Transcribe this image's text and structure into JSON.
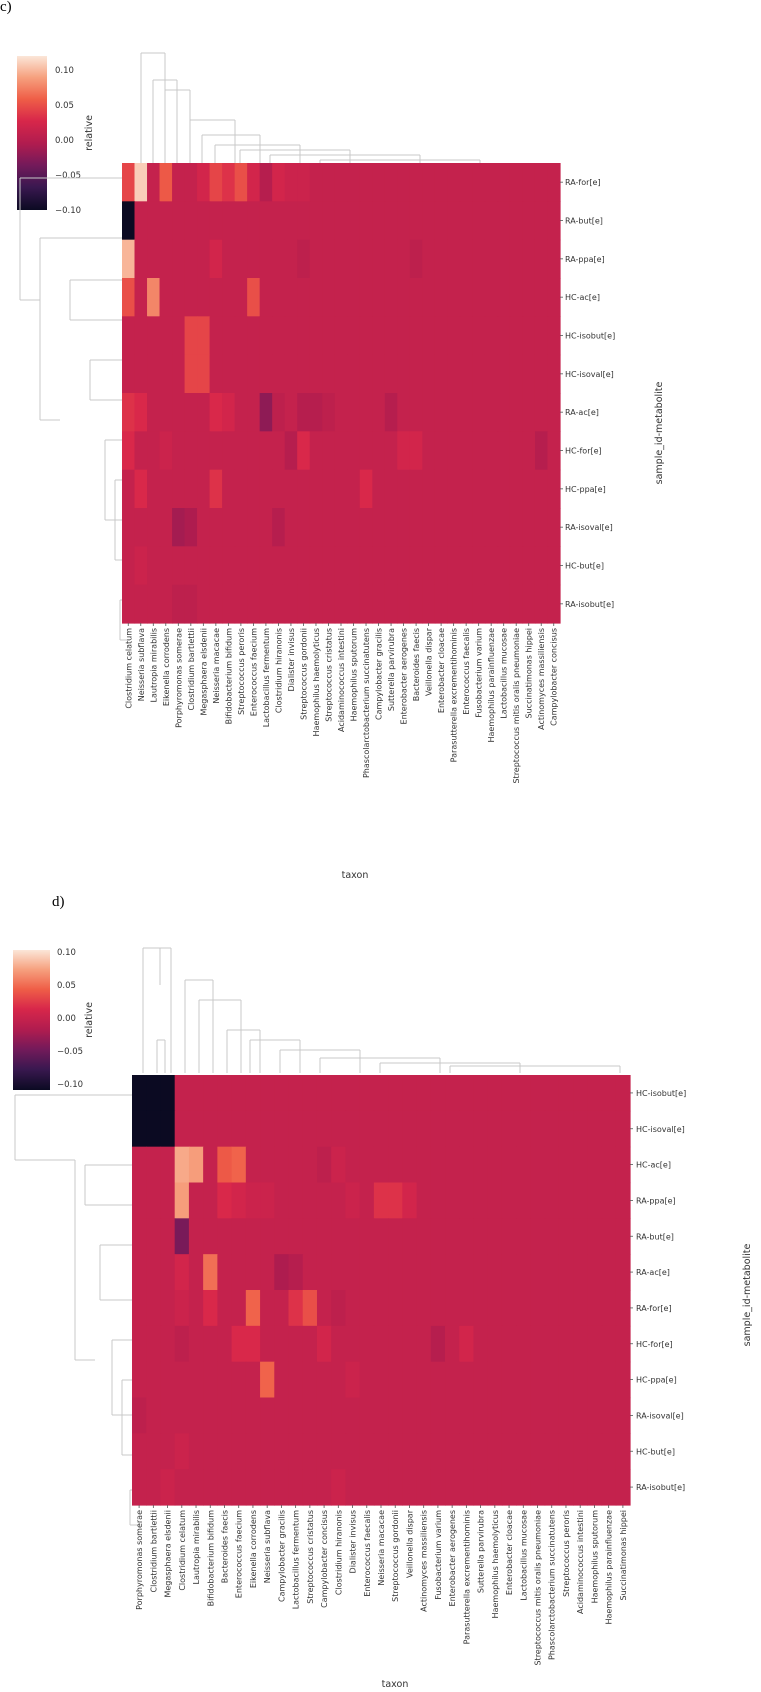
{
  "colors": {
    "scale_stops": [
      "#0b0a22",
      "#3a1850",
      "#731a5a",
      "#b01c4f",
      "#d8274a",
      "#ef5e47",
      "#f6a07e",
      "#fbe6d8"
    ],
    "background": "#ffffff",
    "dendrogram": "#c9c9c9"
  },
  "chart_data": [
    {
      "panel_label": "c)",
      "type": "heatmap",
      "xlabel": "taxon",
      "ylabel": "sample_id-metabolite",
      "colorbar_label": "relative",
      "colorbar_ticks": [
        "0.10",
        "0.05",
        "0.00",
        "−0.05",
        "−0.10"
      ],
      "vmin": -0.1,
      "vmax": 0.1,
      "rows": [
        "RA-for[e]",
        "RA-but[e]",
        "RA-ppa[e]",
        "HC-ac[e]",
        "HC-isobut[e]",
        "HC-isoval[e]",
        "RA-ac[e]",
        "HC-for[e]",
        "HC-ppa[e]",
        "RA-isoval[e]",
        "HC-but[e]",
        "RA-isobut[e]"
      ],
      "columns": [
        "Clostridium celatum",
        "Neisseria subflava",
        "Lautropia mirabilis",
        "Eikenella corrodens",
        "Porphyromonas somerae",
        "Clostridium bartlettii",
        "Megasphaera elsdenii",
        "Neisseria macacae",
        "Bifidobacterium bifidum",
        "Streptococcus peroris",
        "Enterococcus faecium",
        "Lactobacillus fermentum",
        "Clostridium hiranonis",
        "Dialister invisus",
        "Streptococcus gordonii",
        "Haemophilus haemolyticus",
        "Streptococcus cristatus",
        "Acidaminococcus intestini",
        "Haemophilus sputorum",
        "Phascolarctobacterium succinatutens",
        "Campylobacter gracilis",
        "Sutterella parvirubra",
        "Enterobacter aerogenes",
        "Bacteroides faecis",
        "Veillonella dispar",
        "Enterobacter cloacae",
        "Parasutterella excrementihominis",
        "Enterococcus faecalis",
        "Fusobacterium varium",
        "Haemophilus parainfluenzae",
        "Lactobacillus mucosae",
        "Streptococcus mitis oralis pneumoniae",
        "Succinatimonas hippei",
        "Actinomyces massiliensis",
        "Campylobacter concisus"
      ],
      "values": [
        [
          0.03,
          0.09,
          0.0,
          0.04,
          0.0,
          0.0,
          0.01,
          0.03,
          0.02,
          0.035,
          0.01,
          -0.01,
          0.01,
          0.005,
          0.005,
          0.0,
          0.0,
          0.0,
          0.0,
          0.0,
          0.0,
          0.0,
          0.0,
          0.0,
          0.0,
          0.0,
          0.0,
          0.0,
          0.0,
          0.0,
          0.0,
          0.0,
          0.0,
          0.0,
          0.0
        ],
        [
          -0.1,
          0.0,
          0.0,
          0.0,
          0.0,
          0.0,
          0.0,
          0.0,
          0.0,
          0.0,
          0.0,
          0.0,
          0.0,
          0.0,
          0.0,
          0.0,
          0.0,
          0.0,
          0.0,
          0.0,
          0.0,
          0.0,
          0.0,
          0.0,
          0.0,
          0.0,
          0.0,
          0.0,
          0.0,
          0.0,
          0.0,
          0.0,
          0.0,
          0.0,
          0.0
        ],
        [
          0.08,
          0.0,
          0.0,
          0.0,
          0.0,
          0.0,
          0.0,
          0.01,
          0.0,
          0.0,
          0.0,
          0.0,
          0.0,
          0.0,
          -0.005,
          0.0,
          0.0,
          0.0,
          0.0,
          0.0,
          0.0,
          0.0,
          0.0,
          -0.005,
          0.0,
          0.0,
          0.0,
          0.0,
          0.0,
          0.0,
          0.0,
          0.0,
          0.0,
          0.0,
          0.0
        ],
        [
          0.035,
          0.0,
          0.06,
          0.0,
          0.0,
          0.0,
          0.0,
          0.0,
          0.0,
          0.0,
          0.035,
          0.0,
          0.0,
          0.0,
          0.0,
          0.0,
          0.0,
          0.0,
          0.0,
          0.0,
          0.0,
          0.0,
          0.0,
          0.0,
          0.0,
          0.0,
          0.0,
          0.0,
          0.0,
          0.0,
          0.0,
          0.0,
          0.0,
          0.0,
          0.0
        ],
        [
          0.0,
          0.0,
          0.0,
          0.0,
          0.0,
          0.03,
          0.03,
          0.0,
          0.0,
          0.0,
          0.0,
          0.0,
          0.0,
          0.0,
          0.0,
          0.0,
          0.0,
          0.0,
          0.0,
          0.0,
          0.0,
          0.0,
          0.0,
          0.0,
          0.0,
          0.0,
          0.0,
          0.0,
          0.0,
          0.0,
          0.0,
          0.0,
          0.0,
          0.0,
          0.0
        ],
        [
          0.0,
          0.0,
          0.0,
          0.0,
          0.0,
          0.03,
          0.03,
          0.0,
          0.0,
          0.0,
          0.0,
          0.0,
          0.0,
          0.0,
          0.0,
          0.0,
          0.0,
          0.0,
          0.0,
          0.0,
          0.0,
          0.0,
          0.0,
          0.0,
          0.0,
          0.0,
          0.0,
          0.0,
          0.0,
          0.0,
          0.0,
          0.0,
          0.0,
          0.0,
          0.0
        ],
        [
          0.02,
          0.015,
          0.0,
          0.0,
          0.0,
          0.0,
          0.0,
          0.015,
          0.01,
          0.0,
          0.0,
          -0.03,
          -0.005,
          0.0,
          -0.01,
          -0.01,
          -0.005,
          0.0,
          0.0,
          0.0,
          0.0,
          -0.01,
          0.0,
          0.0,
          0.0,
          0.0,
          0.0,
          0.0,
          0.0,
          0.0,
          0.0,
          0.0,
          0.0,
          0.0,
          0.0
        ],
        [
          0.015,
          0.0,
          0.0,
          0.005,
          0.0,
          0.0,
          0.0,
          0.0,
          0.0,
          0.0,
          0.0,
          0.0,
          0.0,
          -0.01,
          0.015,
          0.0,
          0.0,
          0.0,
          0.0,
          0.0,
          0.0,
          0.0,
          0.01,
          0.01,
          0.0,
          0.0,
          0.0,
          0.0,
          0.0,
          0.0,
          0.0,
          0.0,
          0.0,
          -0.01,
          0.0
        ],
        [
          0.0,
          0.015,
          0.0,
          0.0,
          0.0,
          0.0,
          0.0,
          0.02,
          0.0,
          0.0,
          0.0,
          0.0,
          0.0,
          0.0,
          0.0,
          0.0,
          0.0,
          0.0,
          0.0,
          0.015,
          0.0,
          0.0,
          0.0,
          0.0,
          0.0,
          0.0,
          0.0,
          0.0,
          0.0,
          0.0,
          0.0,
          0.0,
          0.0,
          0.0,
          0.0
        ],
        [
          0.0,
          0.0,
          0.0,
          0.0,
          -0.02,
          -0.015,
          0.0,
          0.0,
          0.0,
          0.0,
          0.0,
          0.0,
          -0.01,
          0.0,
          0.0,
          0.0,
          0.0,
          0.0,
          0.0,
          0.0,
          0.0,
          0.0,
          0.0,
          0.0,
          0.0,
          0.0,
          0.0,
          0.0,
          0.0,
          0.0,
          0.0,
          0.0,
          0.0,
          0.0,
          0.0
        ],
        [
          0.0,
          0.005,
          0.0,
          0.0,
          0.0,
          0.0,
          0.0,
          0.0,
          0.0,
          0.0,
          0.0,
          0.0,
          0.0,
          0.0,
          0.0,
          0.0,
          0.0,
          0.0,
          0.0,
          0.0,
          0.0,
          0.0,
          0.0,
          0.0,
          0.0,
          0.0,
          0.0,
          0.0,
          0.0,
          0.0,
          0.0,
          0.0,
          0.0,
          0.0,
          0.0
        ],
        [
          0.0,
          0.0,
          0.0,
          0.0,
          -0.005,
          -0.005,
          0.0,
          0.0,
          0.0,
          0.0,
          0.0,
          0.0,
          0.0,
          0.0,
          0.0,
          0.0,
          0.0,
          0.0,
          0.0,
          0.0,
          0.0,
          0.0,
          0.0,
          0.0,
          0.0,
          0.0,
          0.0,
          0.0,
          0.0,
          0.0,
          0.0,
          0.0,
          0.0,
          0.0,
          0.0
        ]
      ]
    },
    {
      "panel_label": "d)",
      "type": "heatmap",
      "xlabel": "taxon",
      "ylabel": "sample_id-metabolite",
      "colorbar_label": "relative",
      "colorbar_ticks": [
        "0.10",
        "0.05",
        "0.00",
        "−0.05",
        "−0.10"
      ],
      "vmin": -0.1,
      "vmax": 0.1,
      "rows": [
        "HC-isobut[e]",
        "HC-isoval[e]",
        "HC-ac[e]",
        "RA-ppa[e]",
        "RA-but[e]",
        "RA-ac[e]",
        "RA-for[e]",
        "HC-for[e]",
        "HC-ppa[e]",
        "RA-isoval[e]",
        "HC-but[e]",
        "RA-isobut[e]"
      ],
      "columns": [
        "Porphyromonas somerae",
        "Clostridium bartlettii",
        "Megasphaera elsdenii",
        "Clostridium celatum",
        "Lautropia mirabilis",
        "Bifidobacterium bifidum",
        "Bacteroides faecis",
        "Enterococcus faecium",
        "Eikenella corrodens",
        "Neisseria subflava",
        "Campylobacter gracilis",
        "Lactobacillus fermentum",
        "Streptococcus cristatus",
        "Campylobacter concisus",
        "Clostridium hiranonis",
        "Dialister invisus",
        "Enterococcus faecalis",
        "Neisseria macacae",
        "Streptococcus gordonii",
        "Veillonella dispar",
        "Actinomyces massiliensis",
        "Fusobacterium varium",
        "Enterobacter aerogenes",
        "Parasutterella excrementihominis",
        "Sutterella parvirubra",
        "Haemophilus haemolyticus",
        "Enterobacter cloacae",
        "Lactobacillus mucosae",
        "Streptococcus mitis oralis pneumoniae",
        "Phascolarctobacterium succinatutens",
        "Streptococcus peroris",
        "Acidaminococcus intestini",
        "Haemophilus sputorum",
        "Haemophilus parainfluenzae",
        "Succinatimonas hippei"
      ],
      "values": [
        [
          -0.1,
          -0.1,
          -0.1,
          0.0,
          0.0,
          0.0,
          0.0,
          0.0,
          0.0,
          0.0,
          0.0,
          0.0,
          0.0,
          0.0,
          0.0,
          0.0,
          0.0,
          0.0,
          0.0,
          0.0,
          0.0,
          0.0,
          0.0,
          0.0,
          0.0,
          0.0,
          0.0,
          0.0,
          0.0,
          0.0,
          0.0,
          0.0,
          0.0,
          0.0,
          0.0
        ],
        [
          -0.1,
          -0.1,
          -0.1,
          0.0,
          0.0,
          0.0,
          0.0,
          0.0,
          0.0,
          0.0,
          0.0,
          0.0,
          0.0,
          0.0,
          0.0,
          0.0,
          0.0,
          0.0,
          0.0,
          0.0,
          0.0,
          0.0,
          0.0,
          0.0,
          0.0,
          0.0,
          0.0,
          0.0,
          0.0,
          0.0,
          0.0,
          0.0,
          0.0,
          0.0,
          0.0
        ],
        [
          0.0,
          0.0,
          0.0,
          0.075,
          0.07,
          0.0,
          0.04,
          0.045,
          0.0,
          0.0,
          0.0,
          0.0,
          0.0,
          -0.005,
          0.005,
          0.0,
          0.0,
          0.0,
          0.0,
          0.0,
          0.0,
          0.0,
          0.0,
          0.0,
          0.0,
          0.0,
          0.0,
          0.0,
          0.0,
          0.0,
          0.0,
          0.0,
          0.0,
          0.0,
          0.0
        ],
        [
          0.0,
          0.0,
          0.0,
          0.07,
          0.0,
          0.0,
          0.015,
          0.01,
          0.005,
          0.005,
          0.0,
          0.0,
          0.0,
          0.0,
          0.0,
          0.005,
          0.0,
          0.02,
          0.02,
          0.01,
          0.0,
          0.0,
          0.0,
          0.0,
          0.0,
          0.0,
          0.0,
          0.0,
          0.0,
          0.0,
          0.0,
          0.0,
          0.0,
          0.0,
          0.0
        ],
        [
          0.0,
          0.0,
          0.0,
          -0.04,
          0.0,
          0.0,
          0.0,
          0.0,
          0.0,
          0.0,
          0.0,
          0.0,
          0.0,
          0.0,
          0.0,
          0.0,
          0.0,
          0.0,
          0.0,
          0.0,
          0.0,
          0.0,
          0.0,
          0.0,
          0.0,
          0.0,
          0.0,
          0.0,
          0.0,
          0.0,
          0.0,
          0.0,
          0.0,
          0.0,
          0.0
        ],
        [
          0.0,
          0.0,
          0.0,
          0.01,
          0.0,
          0.05,
          0.0,
          0.0,
          0.0,
          0.0,
          -0.015,
          -0.01,
          0.0,
          0.0,
          0.0,
          0.0,
          0.0,
          0.0,
          0.0,
          0.0,
          0.0,
          0.0,
          0.0,
          0.0,
          0.0,
          0.0,
          0.0,
          0.0,
          0.0,
          0.0,
          0.0,
          0.0,
          0.0,
          0.0,
          0.0
        ],
        [
          0.0,
          0.0,
          0.0,
          0.005,
          0.0,
          0.015,
          0.0,
          0.0,
          0.045,
          0.0,
          0.0,
          0.02,
          0.035,
          0.0,
          -0.005,
          0.0,
          0.0,
          0.0,
          0.0,
          0.0,
          0.0,
          0.0,
          0.0,
          0.0,
          0.0,
          0.0,
          0.0,
          0.0,
          0.0,
          0.0,
          0.0,
          0.0,
          0.0,
          0.0,
          0.0
        ],
        [
          0.0,
          0.0,
          0.0,
          -0.005,
          0.0,
          0.0,
          0.0,
          0.015,
          0.015,
          0.0,
          0.0,
          0.0,
          0.0,
          0.01,
          0.0,
          0.0,
          0.0,
          0.0,
          0.0,
          0.0,
          0.0,
          -0.01,
          0.0,
          0.01,
          0.0,
          0.0,
          0.0,
          0.0,
          0.0,
          0.0,
          0.0,
          0.0,
          0.0,
          0.0,
          0.0
        ],
        [
          0.0,
          0.0,
          0.0,
          0.0,
          0.0,
          0.0,
          0.0,
          0.0,
          0.0,
          0.045,
          0.0,
          0.0,
          0.0,
          0.0,
          0.0,
          0.005,
          0.0,
          0.0,
          0.0,
          0.0,
          0.0,
          0.0,
          0.0,
          0.0,
          0.0,
          0.0,
          0.0,
          0.0,
          0.0,
          0.0,
          0.0,
          0.0,
          0.0,
          0.0,
          0.0
        ],
        [
          -0.005,
          0.0,
          0.0,
          0.0,
          0.0,
          0.0,
          0.0,
          0.0,
          0.0,
          0.0,
          0.0,
          0.0,
          0.0,
          0.0,
          0.0,
          0.0,
          0.0,
          0.0,
          0.0,
          0.0,
          0.0,
          0.0,
          0.0,
          0.0,
          0.0,
          0.0,
          0.0,
          0.0,
          0.0,
          0.0,
          0.0,
          0.0,
          0.0,
          0.0,
          0.0
        ],
        [
          0.0,
          0.0,
          0.0,
          0.005,
          0.0,
          0.0,
          0.0,
          0.0,
          0.0,
          0.0,
          0.0,
          0.0,
          0.0,
          0.0,
          0.0,
          0.0,
          0.0,
          0.0,
          0.0,
          0.0,
          0.0,
          0.0,
          0.0,
          0.0,
          0.0,
          0.0,
          0.0,
          0.0,
          0.0,
          0.0,
          0.0,
          0.0,
          0.0,
          0.0,
          0.0
        ],
        [
          0.0,
          0.0,
          0.005,
          0.0,
          0.0,
          0.0,
          0.0,
          0.0,
          0.0,
          0.0,
          0.0,
          0.0,
          0.0,
          0.0,
          0.005,
          0.0,
          0.0,
          0.0,
          0.0,
          0.0,
          0.0,
          0.0,
          0.0,
          0.0,
          0.0,
          0.0,
          0.0,
          0.0,
          0.0,
          0.0,
          0.0,
          0.0,
          0.0,
          0.0,
          0.0
        ]
      ]
    }
  ]
}
